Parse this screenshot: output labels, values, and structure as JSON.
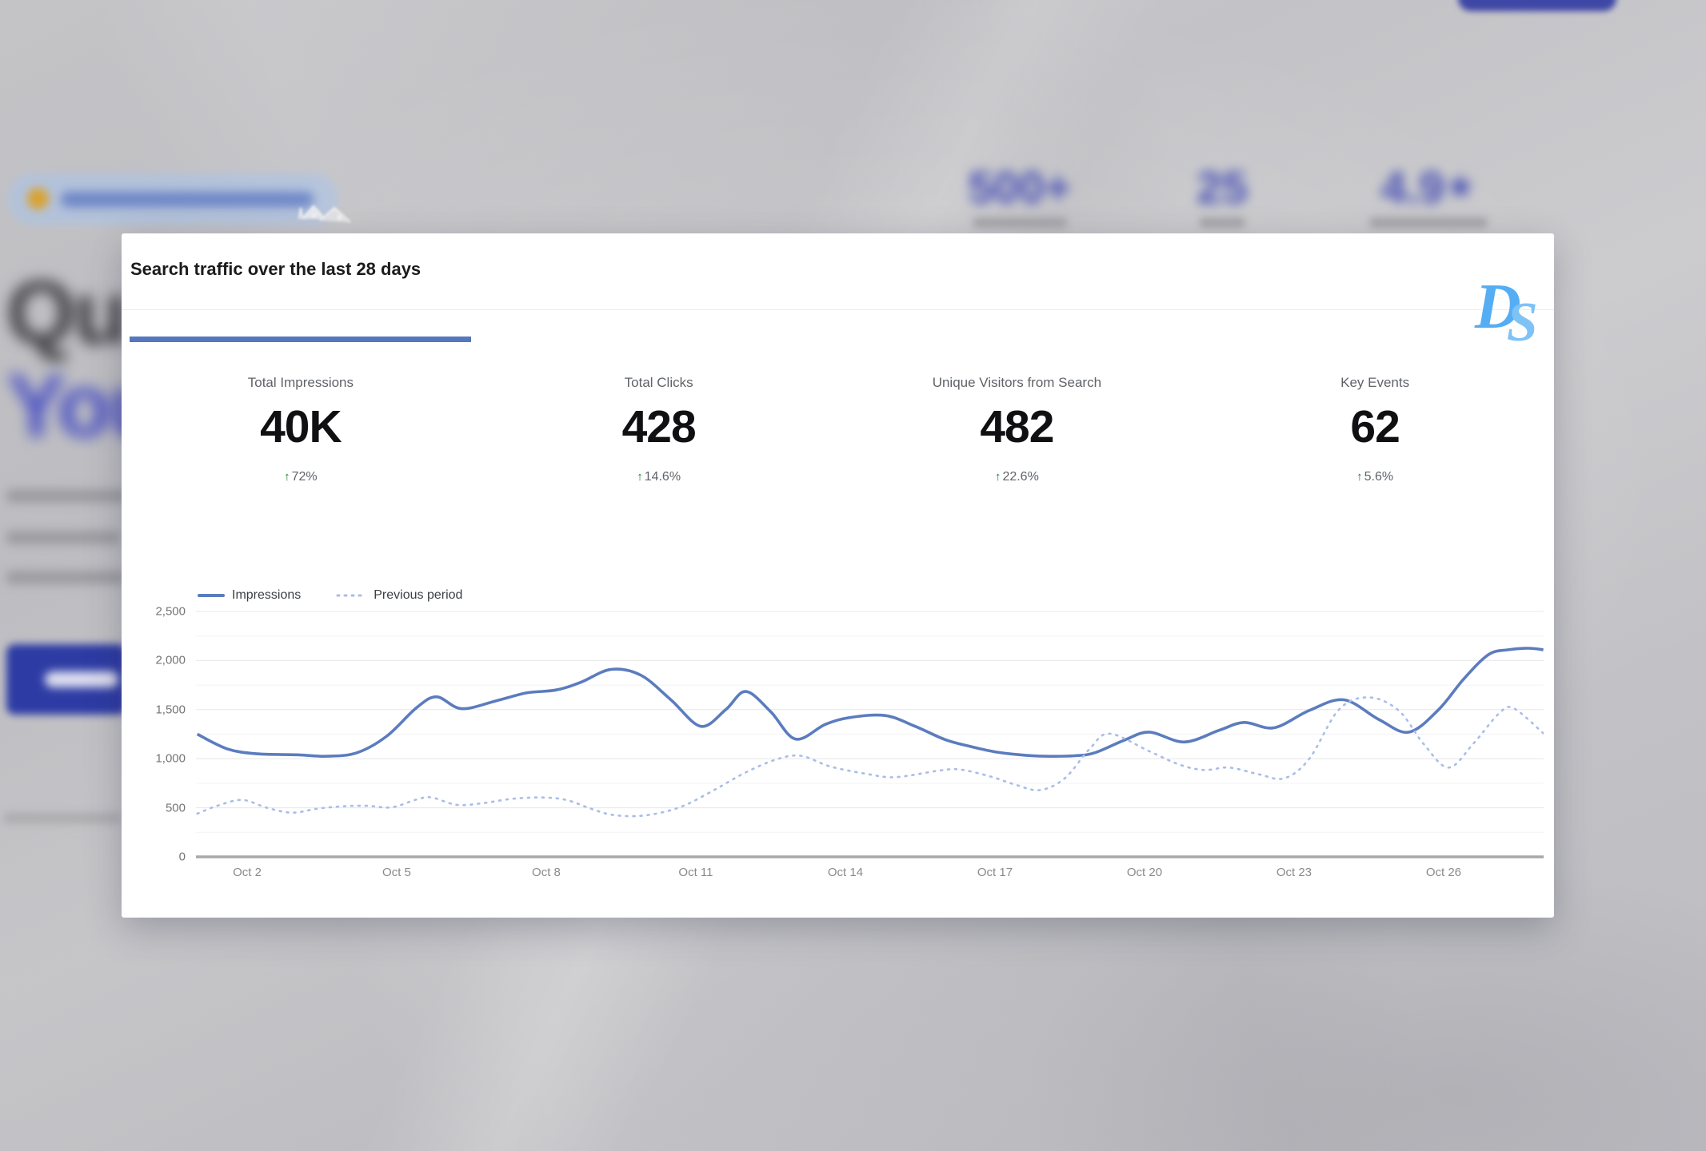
{
  "app": {
    "watermark_d": "D",
    "watermark_s": "S"
  },
  "background": {
    "hero_heading_line1": "Qu",
    "hero_heading_line2": "You",
    "stats": [
      {
        "value": "500+"
      },
      {
        "value": "25"
      },
      {
        "value": "4.9",
        "star": "★"
      }
    ]
  },
  "card": {
    "title": "Search traffic over the last 28 days",
    "up_arrow": "↑",
    "metrics": [
      {
        "label": "Total Impressions",
        "value": "40K",
        "delta": "72%",
        "direction": "up"
      },
      {
        "label": "Total Clicks",
        "value": "428",
        "delta": "14.6%",
        "direction": "up"
      },
      {
        "label": "Unique Visitors from Search",
        "value": "482",
        "delta": "22.6%",
        "direction": "up"
      },
      {
        "label": "Key Events",
        "value": "62",
        "delta": "5.6%",
        "direction": "up"
      }
    ],
    "colors": {
      "accent_tab": "#5577bd",
      "delta_green": "#188038",
      "impressions_line": "#5b7cbe",
      "previous_line": "#a9bde7",
      "logo_blue": "#55adf3"
    }
  },
  "chart_data": {
    "type": "line",
    "title": "Search traffic over the last 28 days",
    "xlabel": "",
    "ylabel": "",
    "x_range_days": [
      1,
      28
    ],
    "ylim": [
      0,
      2500
    ],
    "y_ticks": [
      0,
      500,
      1000,
      1500,
      2000,
      2500
    ],
    "y_tick_labels": [
      "0",
      "500",
      "1,000",
      "1,500",
      "2,000",
      "2,500"
    ],
    "y_minor_step": 250,
    "x_tick_days": [
      2,
      5,
      8,
      11,
      14,
      17,
      20,
      23,
      26
    ],
    "x_tick_labels": [
      "Oct 2",
      "Oct 5",
      "Oct 8",
      "Oct 11",
      "Oct 14",
      "Oct 17",
      "Oct 20",
      "Oct 23",
      "Oct 26"
    ],
    "grid": true,
    "legend": [
      "Impressions",
      "Previous period"
    ],
    "legend_position": "top-left",
    "series": [
      {
        "name": "Impressions",
        "style": "solid",
        "color": "#5b7cbe",
        "points": [
          [
            1,
            1250
          ],
          [
            1.6,
            1100
          ],
          [
            2.2,
            1050
          ],
          [
            3,
            1040
          ],
          [
            3.6,
            1025
          ],
          [
            4.2,
            1060
          ],
          [
            4.8,
            1230
          ],
          [
            5.4,
            1520
          ],
          [
            5.8,
            1630
          ],
          [
            6.3,
            1510
          ],
          [
            7,
            1590
          ],
          [
            7.6,
            1670
          ],
          [
            8.2,
            1700
          ],
          [
            8.7,
            1780
          ],
          [
            9.3,
            1910
          ],
          [
            9.9,
            1850
          ],
          [
            10.5,
            1600
          ],
          [
            11.1,
            1330
          ],
          [
            11.6,
            1500
          ],
          [
            12,
            1685
          ],
          [
            12.5,
            1480
          ],
          [
            13,
            1200
          ],
          [
            13.6,
            1350
          ],
          [
            14.1,
            1420
          ],
          [
            14.8,
            1440
          ],
          [
            15.4,
            1330
          ],
          [
            16,
            1195
          ],
          [
            16.5,
            1125
          ],
          [
            17,
            1070
          ],
          [
            17.5,
            1040
          ],
          [
            18,
            1025
          ],
          [
            18.6,
            1030
          ],
          [
            19,
            1060
          ],
          [
            19.6,
            1190
          ],
          [
            20.1,
            1270
          ],
          [
            20.8,
            1170
          ],
          [
            21.5,
            1290
          ],
          [
            22,
            1370
          ],
          [
            22.6,
            1315
          ],
          [
            23.3,
            1490
          ],
          [
            24,
            1600
          ],
          [
            24.7,
            1400
          ],
          [
            25.3,
            1270
          ],
          [
            25.9,
            1500
          ],
          [
            26.4,
            1810
          ],
          [
            26.9,
            2060
          ],
          [
            27.3,
            2110
          ],
          [
            27.7,
            2125
          ],
          [
            28,
            2110
          ]
        ]
      },
      {
        "name": "Previous period",
        "style": "dotted",
        "color": "#a9bde7",
        "points": [
          [
            1,
            440
          ],
          [
            1.4,
            520
          ],
          [
            1.9,
            580
          ],
          [
            2.4,
            500
          ],
          [
            2.9,
            450
          ],
          [
            3.4,
            490
          ],
          [
            3.9,
            515
          ],
          [
            4.4,
            520
          ],
          [
            4.9,
            505
          ],
          [
            5.4,
            585
          ],
          [
            5.7,
            605
          ],
          [
            6.2,
            530
          ],
          [
            6.7,
            545
          ],
          [
            7.3,
            590
          ],
          [
            7.9,
            605
          ],
          [
            8.4,
            580
          ],
          [
            8.9,
            490
          ],
          [
            9.3,
            430
          ],
          [
            9.8,
            415
          ],
          [
            10.3,
            450
          ],
          [
            10.8,
            530
          ],
          [
            11.4,
            690
          ],
          [
            12,
            860
          ],
          [
            12.6,
            990
          ],
          [
            13.1,
            1030
          ],
          [
            13.7,
            920
          ],
          [
            14.4,
            848
          ],
          [
            15,
            812
          ],
          [
            15.9,
            880
          ],
          [
            16.3,
            890
          ],
          [
            16.9,
            820
          ],
          [
            17.4,
            737
          ],
          [
            17.9,
            680
          ],
          [
            18.4,
            800
          ],
          [
            18.9,
            1100
          ],
          [
            19.3,
            1255
          ],
          [
            20.1,
            1075
          ],
          [
            20.7,
            940
          ],
          [
            21.2,
            885
          ],
          [
            21.7,
            910
          ],
          [
            22.3,
            840
          ],
          [
            22.8,
            800
          ],
          [
            23.3,
            995
          ],
          [
            23.9,
            1500
          ],
          [
            24.5,
            1625
          ],
          [
            25.1,
            1490
          ],
          [
            25.6,
            1150
          ],
          [
            26.1,
            910
          ],
          [
            26.6,
            1155
          ],
          [
            27.1,
            1455
          ],
          [
            27.4,
            1515
          ],
          [
            28,
            1260
          ]
        ]
      }
    ]
  }
}
